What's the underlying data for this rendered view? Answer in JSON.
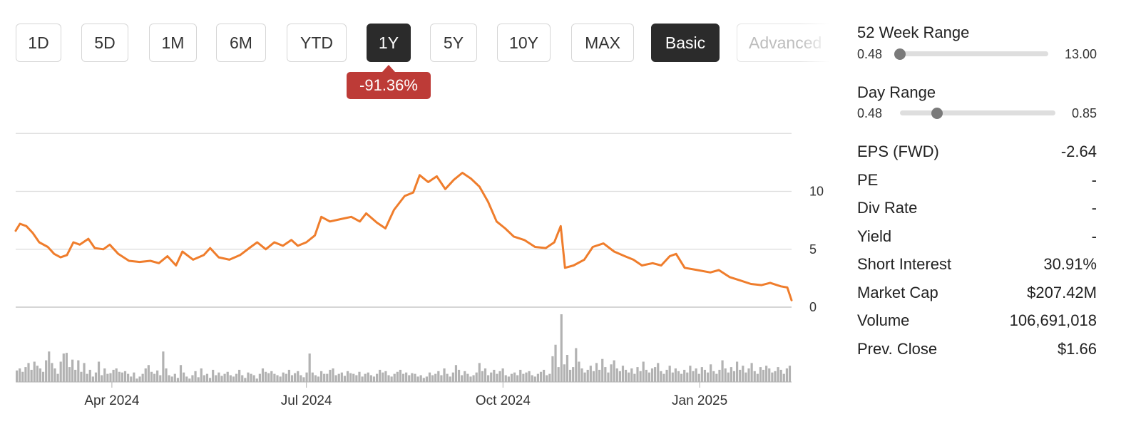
{
  "tabs": [
    {
      "label": "1D",
      "state": "normal"
    },
    {
      "label": "5D",
      "state": "normal"
    },
    {
      "label": "1M",
      "state": "normal"
    },
    {
      "label": "6M",
      "state": "normal"
    },
    {
      "label": "YTD",
      "state": "normal"
    },
    {
      "label": "1Y",
      "state": "active"
    },
    {
      "label": "5Y",
      "state": "normal"
    },
    {
      "label": "10Y",
      "state": "normal"
    },
    {
      "label": "MAX",
      "state": "normal"
    },
    {
      "label": "Basic",
      "state": "active"
    },
    {
      "label": "Advanced",
      "state": "faded"
    }
  ],
  "change_badge": {
    "text": "-91.36%",
    "color": "#bd3b37"
  },
  "stats": {
    "week52": {
      "label": "52 Week Range",
      "low": "0.48",
      "high": "13.00",
      "position": 0
    },
    "day": {
      "label": "Day Range",
      "low": "0.48",
      "high": "0.85",
      "position": 0.24
    },
    "rows": [
      {
        "key": "EPS (FWD)",
        "value": "-2.64"
      },
      {
        "key": "PE",
        "value": "-"
      },
      {
        "key": "Div Rate",
        "value": "-"
      },
      {
        "key": "Yield",
        "value": "-"
      },
      {
        "key": "Short Interest",
        "value": "30.91%"
      },
      {
        "key": "Market Cap",
        "value": "$207.42M"
      },
      {
        "key": "Volume",
        "value": "106,691,018"
      },
      {
        "key": "Prev. Close",
        "value": "$1.66"
      }
    ]
  },
  "chart_data": {
    "type": "line",
    "line_color": "#ef7d2c",
    "volume_color": "#b2b2b2",
    "grid": true,
    "ylim": [
      0,
      15
    ],
    "yticks": [
      "0",
      "5",
      "10"
    ],
    "x_tick_labels": [
      {
        "label": "Apr 2024",
        "date": "2024-04-01"
      },
      {
        "label": "Jul 2024",
        "date": "2024-07-01"
      },
      {
        "label": "Oct 2024",
        "date": "2024-10-01"
      },
      {
        "label": "Jan 2025",
        "date": "2025-01-01"
      }
    ],
    "price_series": [
      [
        "2024-02-16",
        6.6
      ],
      [
        "2024-02-18",
        7.2
      ],
      [
        "2024-02-21",
        7.0
      ],
      [
        "2024-02-24",
        6.4
      ],
      [
        "2024-02-27",
        5.6
      ],
      [
        "2024-03-02",
        5.2
      ],
      [
        "2024-03-05",
        4.6
      ],
      [
        "2024-03-08",
        4.3
      ],
      [
        "2024-03-11",
        4.5
      ],
      [
        "2024-03-14",
        5.6
      ],
      [
        "2024-03-17",
        5.4
      ],
      [
        "2024-03-21",
        5.9
      ],
      [
        "2024-03-24",
        5.1
      ],
      [
        "2024-03-28",
        5.0
      ],
      [
        "2024-03-31",
        5.4
      ],
      [
        "2024-04-04",
        4.6
      ],
      [
        "2024-04-09",
        4.0
      ],
      [
        "2024-04-14",
        3.9
      ],
      [
        "2024-04-19",
        4.0
      ],
      [
        "2024-04-23",
        3.8
      ],
      [
        "2024-04-27",
        4.4
      ],
      [
        "2024-05-01",
        3.6
      ],
      [
        "2024-05-04",
        4.8
      ],
      [
        "2024-05-09",
        4.1
      ],
      [
        "2024-05-14",
        4.5
      ],
      [
        "2024-05-17",
        5.1
      ],
      [
        "2024-05-21",
        4.3
      ],
      [
        "2024-05-26",
        4.1
      ],
      [
        "2024-05-31",
        4.5
      ],
      [
        "2024-06-05",
        5.2
      ],
      [
        "2024-06-08",
        5.6
      ],
      [
        "2024-06-12",
        5.0
      ],
      [
        "2024-06-16",
        5.6
      ],
      [
        "2024-06-20",
        5.3
      ],
      [
        "2024-06-24",
        5.8
      ],
      [
        "2024-06-27",
        5.3
      ],
      [
        "2024-07-01",
        5.6
      ],
      [
        "2024-07-05",
        6.2
      ],
      [
        "2024-07-08",
        7.8
      ],
      [
        "2024-07-12",
        7.4
      ],
      [
        "2024-07-17",
        7.6
      ],
      [
        "2024-07-22",
        7.8
      ],
      [
        "2024-07-26",
        7.4
      ],
      [
        "2024-07-29",
        8.1
      ],
      [
        "2024-08-03",
        7.3
      ],
      [
        "2024-08-07",
        6.8
      ],
      [
        "2024-08-11",
        8.4
      ],
      [
        "2024-08-16",
        9.6
      ],
      [
        "2024-08-20",
        9.9
      ],
      [
        "2024-08-23",
        11.4
      ],
      [
        "2024-08-27",
        10.8
      ],
      [
        "2024-08-31",
        11.3
      ],
      [
        "2024-09-04",
        10.2
      ],
      [
        "2024-09-08",
        11.0
      ],
      [
        "2024-09-12",
        11.6
      ],
      [
        "2024-09-16",
        11.1
      ],
      [
        "2024-09-20",
        10.4
      ],
      [
        "2024-09-24",
        9.1
      ],
      [
        "2024-09-28",
        7.4
      ],
      [
        "2024-10-02",
        6.8
      ],
      [
        "2024-10-06",
        6.1
      ],
      [
        "2024-10-11",
        5.8
      ],
      [
        "2024-10-16",
        5.2
      ],
      [
        "2024-10-21",
        5.1
      ],
      [
        "2024-10-25",
        5.6
      ],
      [
        "2024-10-28",
        7.0
      ],
      [
        "2024-10-30",
        3.4
      ],
      [
        "2024-11-03",
        3.6
      ],
      [
        "2024-11-08",
        4.1
      ],
      [
        "2024-11-12",
        5.2
      ],
      [
        "2024-11-17",
        5.5
      ],
      [
        "2024-11-22",
        4.8
      ],
      [
        "2024-11-27",
        4.4
      ],
      [
        "2024-12-01",
        4.1
      ],
      [
        "2024-12-05",
        3.6
      ],
      [
        "2024-12-10",
        3.8
      ],
      [
        "2024-12-14",
        3.6
      ],
      [
        "2024-12-18",
        4.4
      ],
      [
        "2024-12-21",
        4.6
      ],
      [
        "2024-12-25",
        3.4
      ],
      [
        "2024-12-31",
        3.2
      ],
      [
        "2025-01-06",
        3.0
      ],
      [
        "2025-01-10",
        3.2
      ],
      [
        "2025-01-15",
        2.6
      ],
      [
        "2025-01-20",
        2.3
      ],
      [
        "2025-01-25",
        2.0
      ],
      [
        "2025-01-30",
        1.9
      ],
      [
        "2025-02-03",
        2.1
      ],
      [
        "2025-02-08",
        1.8
      ],
      [
        "2025-02-11",
        1.7
      ],
      [
        "2025-02-13",
        0.6
      ]
    ],
    "volume_relative": [
      0.17,
      0.2,
      0.15,
      0.22,
      0.28,
      0.18,
      0.3,
      0.24,
      0.2,
      0.15,
      0.32,
      0.45,
      0.28,
      0.2,
      0.12,
      0.3,
      0.42,
      0.43,
      0.22,
      0.33,
      0.18,
      0.32,
      0.15,
      0.28,
      0.12,
      0.18,
      0.08,
      0.14,
      0.3,
      0.1,
      0.2,
      0.12,
      0.13,
      0.18,
      0.2,
      0.15,
      0.14,
      0.16,
      0.12,
      0.08,
      0.14,
      0.05,
      0.08,
      0.12,
      0.2,
      0.25,
      0.15,
      0.12,
      0.17,
      0.1,
      0.45,
      0.2,
      0.1,
      0.08,
      0.12,
      0.06,
      0.25,
      0.14,
      0.08,
      0.05,
      0.1,
      0.16,
      0.07,
      0.2,
      0.1,
      0.12,
      0.06,
      0.18,
      0.1,
      0.14,
      0.09,
      0.12,
      0.15,
      0.1,
      0.08,
      0.12,
      0.18,
      0.1,
      0.06,
      0.14,
      0.12,
      0.1,
      0.05,
      0.12,
      0.2,
      0.15,
      0.13,
      0.16,
      0.12,
      0.1,
      0.08,
      0.14,
      0.12,
      0.18,
      0.1,
      0.13,
      0.16,
      0.1,
      0.07,
      0.14,
      0.42,
      0.14,
      0.1,
      0.08,
      0.16,
      0.12,
      0.12,
      0.18,
      0.2,
      0.1,
      0.12,
      0.14,
      0.09,
      0.16,
      0.13,
      0.12,
      0.1,
      0.15,
      0.08,
      0.12,
      0.14,
      0.1,
      0.08,
      0.12,
      0.18,
      0.14,
      0.16,
      0.1,
      0.08,
      0.12,
      0.15,
      0.18,
      0.12,
      0.14,
      0.1,
      0.13,
      0.12,
      0.08,
      0.1,
      0.06,
      0.08,
      0.14,
      0.1,
      0.12,
      0.16,
      0.1,
      0.2,
      0.12,
      0.08,
      0.14,
      0.25,
      0.18,
      0.1,
      0.16,
      0.12,
      0.08,
      0.1,
      0.14,
      0.28,
      0.16,
      0.2,
      0.1,
      0.14,
      0.18,
      0.12,
      0.16,
      0.2,
      0.1,
      0.08,
      0.12,
      0.14,
      0.1,
      0.18,
      0.12,
      0.14,
      0.16,
      0.1,
      0.08,
      0.12,
      0.15,
      0.18,
      0.1,
      0.12,
      0.38,
      0.55,
      0.22,
      1.0,
      0.26,
      0.4,
      0.18,
      0.22,
      0.5,
      0.3,
      0.2,
      0.14,
      0.18,
      0.24,
      0.16,
      0.28,
      0.18,
      0.34,
      0.22,
      0.14,
      0.26,
      0.32,
      0.2,
      0.16,
      0.24,
      0.18,
      0.14,
      0.2,
      0.12,
      0.22,
      0.16,
      0.3,
      0.18,
      0.14,
      0.2,
      0.22,
      0.28,
      0.16,
      0.12,
      0.18,
      0.24,
      0.14,
      0.2,
      0.16,
      0.12,
      0.18,
      0.14,
      0.24,
      0.16,
      0.2,
      0.12,
      0.22,
      0.18,
      0.14,
      0.26,
      0.16,
      0.12,
      0.18,
      0.32,
      0.2,
      0.14,
      0.22,
      0.16,
      0.3,
      0.18,
      0.24,
      0.14,
      0.2,
      0.28,
      0.16,
      0.12,
      0.22,
      0.18,
      0.24,
      0.2,
      0.14,
      0.16,
      0.22,
      0.18,
      0.12,
      0.2,
      0.24
    ]
  }
}
